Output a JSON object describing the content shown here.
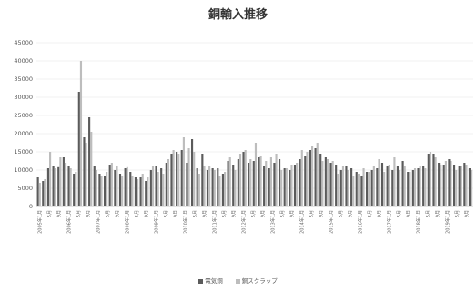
{
  "chart_data": {
    "type": "bar",
    "title": "銅輸入推移",
    "xlabel": "",
    "ylabel": "",
    "ylim": [
      0,
      45000
    ],
    "yticks": [
      "0",
      "5000",
      "10000",
      "15000",
      "20000",
      "25000",
      "30000",
      "35000",
      "40000",
      "45000"
    ],
    "grid": true,
    "legend_position": "bottom",
    "x_tick_labels": [
      "2005年1月",
      "5月",
      "9月",
      "2006年1月",
      "5月",
      "9月",
      "2007年1月",
      "5月",
      "9月",
      "2008年1月",
      "5月",
      "9月",
      "2009年1月",
      "5月",
      "9月",
      "2010年1月",
      "5月",
      "9月",
      "2011年1月",
      "5月",
      "9月",
      "2012年1月",
      "5月",
      "9月",
      "2013年1月",
      "5月",
      "9月",
      "2014年1月",
      "5月",
      "9月",
      "2015年1月",
      "5月",
      "9月",
      "2016年1月",
      "5月",
      "9月",
      "2017年1月",
      "5月",
      "9月",
      "2018年1月",
      "5月",
      "9月",
      "2019年1月",
      "5月",
      "9月"
    ],
    "series": [
      {
        "name": "電気銅",
        "color": "#5b5b5b",
        "values": [
          8000,
          7000,
          10500,
          11000,
          10800,
          13500,
          11000,
          9000,
          31500,
          19000,
          24500,
          11000,
          9000,
          8500,
          11500,
          10000,
          9000,
          10500,
          9500,
          8000,
          8000,
          7000,
          10000,
          11000,
          10500,
          12000,
          14500,
          15000,
          15500,
          12000,
          18500,
          10500,
          14500,
          10000,
          10500,
          10500,
          9000,
          12500,
          11500,
          13000,
          15000,
          12000,
          12500,
          13500,
          11000,
          10500,
          12000,
          13000,
          10500,
          10000,
          11500,
          13000,
          14000,
          15500,
          16000,
          14500,
          13500,
          12000,
          11500,
          10000,
          11000,
          10500,
          9500,
          8500,
          9500,
          10000,
          10500,
          12000,
          11000,
          10000,
          11000,
          12500,
          9500,
          10000,
          10500,
          11000,
          14500,
          14500,
          12000,
          11500,
          13000,
          11500,
          11000,
          12000,
          10500
        ]
      },
      {
        "name": "銅スクラップ",
        "color": "#bdbdbd",
        "values": [
          6500,
          7500,
          15000,
          10500,
          13500,
          12000,
          10500,
          9500,
          40000,
          17500,
          20500,
          10000,
          8500,
          9500,
          12000,
          11000,
          8500,
          10800,
          8500,
          7500,
          9000,
          8000,
          11000,
          9500,
          9000,
          13000,
          15500,
          14500,
          19000,
          16000,
          15000,
          9000,
          11000,
          11000,
          10000,
          8500,
          9500,
          13500,
          10000,
          14500,
          15500,
          13000,
          17500,
          14000,
          12500,
          13500,
          14500,
          10000,
          10500,
          11500,
          12000,
          15500,
          15000,
          16500,
          17500,
          12500,
          13000,
          12500,
          9000,
          11000,
          10000,
          8500,
          9000,
          10500,
          9500,
          11000,
          13000,
          9500,
          11500,
          13500,
          10000,
          11000,
          9500,
          10500,
          11000,
          10500,
          15000,
          13500,
          11500,
          12500,
          12500,
          10000,
          11000,
          11500,
          10000
        ]
      }
    ]
  }
}
